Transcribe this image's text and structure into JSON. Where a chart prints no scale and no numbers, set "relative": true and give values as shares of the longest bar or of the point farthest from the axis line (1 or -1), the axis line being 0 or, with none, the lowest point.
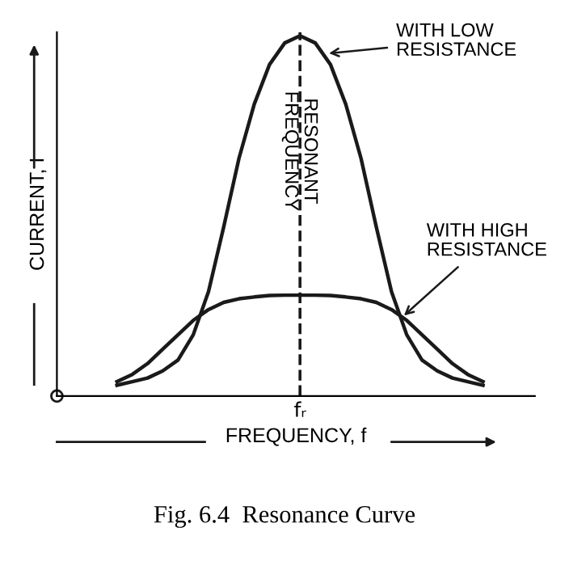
{
  "chart_data": {
    "type": "line",
    "relative": true,
    "xlabel": "FREQUENCY, f",
    "ylabel": "CURRENT, I",
    "categories": [
      null,
      null,
      null,
      null,
      null,
      null,
      null,
      null,
      null,
      null,
      null,
      null,
      null,
      null,
      null,
      null,
      null,
      null,
      null,
      null,
      null,
      null,
      null,
      null,
      null
    ],
    "series": [
      {
        "color": "#1a1a1a",
        "values": [
          0.03,
          0.04,
          0.05,
          0.07,
          0.1,
          0.17,
          0.29,
          0.47,
          0.66,
          0.81,
          0.92,
          0.98,
          1.0,
          0.98,
          0.92,
          0.81,
          0.66,
          0.47,
          0.29,
          0.17,
          0.1,
          0.07,
          0.05,
          0.04,
          0.03
        ]
      },
      {
        "color": "#1a1a1a",
        "values": [
          0.04,
          0.06,
          0.09,
          0.13,
          0.17,
          0.21,
          0.24,
          0.26,
          0.27,
          0.275,
          0.279,
          0.28,
          0.28,
          0.28,
          0.279,
          0.275,
          0.27,
          0.26,
          0.24,
          0.21,
          0.17,
          0.13,
          0.09,
          0.06,
          0.04
        ]
      }
    ],
    "annotations": [
      "WITH LOW\nRESISTANCE",
      "WITH HIGH\nRESISTANCE",
      "RESONANT\nFREQUENCY",
      "fᵣ",
      "Fig. 6.4  Resonance Curve"
    ],
    "tick_labels": false,
    "marker": "none",
    "line_style": "solid"
  }
}
